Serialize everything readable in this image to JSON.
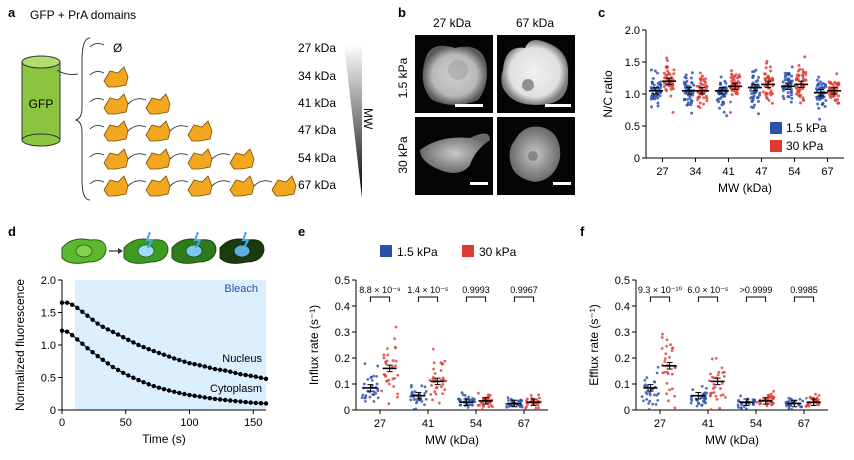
{
  "panels": {
    "a": {
      "label": "a",
      "title": "GFP + PrA domains",
      "gfp_label": "GFP",
      "empty_symbol": "Ø",
      "mw_axis_label": "MW",
      "construct_sizes": [
        "27 kDa",
        "34 kDa",
        "41 kDa",
        "47 kDa",
        "54 kDa",
        "67 kDa"
      ],
      "domain_counts": [
        0,
        1,
        2,
        3,
        4,
        5
      ],
      "colors": {
        "gfp": "#8bc53f",
        "domain": "#f3a71e"
      }
    },
    "b": {
      "label": "b",
      "col_labels": [
        "27 kDa",
        "67 kDa"
      ],
      "row_labels": [
        "1.5 kPa",
        "30 kPa"
      ]
    },
    "c": {
      "label": "c"
    },
    "d": {
      "label": "d",
      "bleach_label": "Bleach",
      "nucleus_label": "Nucleus",
      "cytoplasm_label": "Cytoplasm"
    },
    "e": {
      "label": "e",
      "pvalues": [
        "8.8 × 10⁻⁹",
        "1.4 × 10⁻⁵",
        "0.9993",
        "0.9967"
      ]
    },
    "f": {
      "label": "f",
      "pvalues": [
        "9.3 × 10⁻¹⁰",
        "6.0 × 10⁻⁵",
        ">0.9999",
        "0.9985"
      ]
    }
  },
  "legend_e": [
    "1.5 kPa",
    "30 kPa"
  ],
  "colors": {
    "blue": "#2a4fa8",
    "red": "#e03a2f",
    "bleach_bg": "#dcefff"
  },
  "chart_data": [
    {
      "id": "c",
      "type": "scatter",
      "title": "",
      "xlabel": "MW (kDa)",
      "ylabel": "N/C ratio",
      "categories": [
        "27",
        "34",
        "41",
        "47",
        "54",
        "67"
      ],
      "ylim": [
        0,
        2.0
      ],
      "yticks": [
        "0",
        "0.5",
        "1.0",
        "1.5",
        "2.0"
      ],
      "legend": [
        "1.5 kPa",
        "30 kPa"
      ],
      "series": [
        {
          "name": "1.5 kPa",
          "means": [
            1.05,
            1.05,
            1.05,
            1.1,
            1.12,
            1.02
          ]
        },
        {
          "name": "30 kPa",
          "means": [
            1.2,
            1.05,
            1.12,
            1.15,
            1.15,
            1.05
          ]
        }
      ]
    },
    {
      "id": "d",
      "type": "line",
      "xlabel": "Time (s)",
      "ylabel": "Normalized fluorescence",
      "xlim": [
        0,
        160
      ],
      "ylim": [
        0,
        2.0
      ],
      "xticks": [
        "0",
        "50",
        "100",
        "150"
      ],
      "yticks": [
        "0",
        "0.5",
        "1.0",
        "1.5",
        "2.0"
      ],
      "bleach_start": 10,
      "series": [
        {
          "name": "Nucleus",
          "x": [
            0,
            5,
            10,
            20,
            30,
            40,
            50,
            60,
            70,
            80,
            90,
            100,
            110,
            120,
            130,
            140,
            150,
            160
          ],
          "values": [
            1.65,
            1.65,
            1.6,
            1.45,
            1.3,
            1.2,
            1.1,
            1.0,
            0.92,
            0.85,
            0.78,
            0.72,
            0.68,
            0.63,
            0.6,
            0.55,
            0.52,
            0.48
          ]
        },
        {
          "name": "Cytoplasm",
          "x": [
            0,
            5,
            10,
            20,
            30,
            40,
            50,
            60,
            70,
            80,
            90,
            100,
            110,
            120,
            130,
            140,
            150,
            160
          ],
          "values": [
            1.22,
            1.2,
            1.12,
            0.95,
            0.8,
            0.66,
            0.55,
            0.46,
            0.38,
            0.32,
            0.27,
            0.23,
            0.2,
            0.17,
            0.15,
            0.13,
            0.11,
            0.1
          ]
        }
      ]
    },
    {
      "id": "e",
      "type": "scatter",
      "xlabel": "MW (kDa)",
      "ylabel": "Influx rate (s⁻¹)",
      "categories": [
        "27",
        "41",
        "54",
        "67"
      ],
      "ylim": [
        0,
        0.5
      ],
      "yticks": [
        "0",
        "0.1",
        "0.2",
        "0.3",
        "0.4",
        "0.5"
      ],
      "series": [
        {
          "name": "1.5 kPa",
          "means": [
            0.085,
            0.055,
            0.03,
            0.025
          ]
        },
        {
          "name": "30 kPa",
          "means": [
            0.16,
            0.11,
            0.035,
            0.03
          ]
        }
      ]
    },
    {
      "id": "f",
      "type": "scatter",
      "xlabel": "MW (kDa)",
      "ylabel": "Efflux rate (s⁻¹)",
      "categories": [
        "27",
        "41",
        "54",
        "67"
      ],
      "ylim": [
        0,
        0.5
      ],
      "yticks": [
        "0",
        "0.1",
        "0.2",
        "0.3",
        "0.4",
        "0.5"
      ],
      "series": [
        {
          "name": "1.5 kPa",
          "means": [
            0.085,
            0.055,
            0.03,
            0.025
          ]
        },
        {
          "name": "30 kPa",
          "means": [
            0.17,
            0.11,
            0.035,
            0.03
          ]
        }
      ]
    }
  ]
}
